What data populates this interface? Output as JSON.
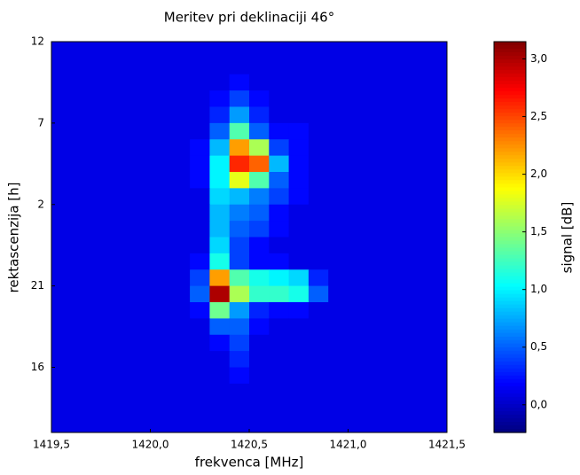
{
  "chart_data": {
    "type": "heatmap",
    "title": "Meritev pri deklinaciji 46°",
    "x_label": "frekvenca [MHz]",
    "y_label": "rektascenzija [h]",
    "colormap": "jet",
    "x": [
      1419.55,
      1419.65,
      1419.75,
      1419.85,
      1419.95,
      1420.05,
      1420.15,
      1420.25,
      1420.35,
      1420.45,
      1420.55,
      1420.65,
      1420.75,
      1420.85,
      1420.95,
      1421.05,
      1421.15,
      1421.25,
      1421.35,
      1421.45
    ],
    "y": [
      11.5,
      10.5,
      9.5,
      8.5,
      7.5,
      6.5,
      5.5,
      4.5,
      3.5,
      2.5,
      1.5,
      0.5,
      -0.5,
      -1.5,
      -2.5,
      -3.5,
      -4.5,
      -5.5,
      -6.5,
      -7.5,
      -8.5,
      -9.5,
      -10.5,
      -11.5
    ],
    "z": [
      [
        0.1,
        0.1,
        0.1,
        0.1,
        0.1,
        0.1,
        0.1,
        0.1,
        0.1,
        0.1,
        0.1,
        0.1,
        0.1,
        0.1,
        0.1,
        0.1,
        0.1,
        0.1,
        0.1,
        0.1
      ],
      [
        0.1,
        0.1,
        0.1,
        0.1,
        0.1,
        0.1,
        0.1,
        0.1,
        0.1,
        0.1,
        0.1,
        0.1,
        0.1,
        0.1,
        0.1,
        0.1,
        0.1,
        0.1,
        0.1,
        0.1
      ],
      [
        0.1,
        0.1,
        0.1,
        0.1,
        0.1,
        0.1,
        0.1,
        0.1,
        0.1,
        0.2,
        0.1,
        0.1,
        0.1,
        0.1,
        0.1,
        0.1,
        0.1,
        0.1,
        0.1,
        0.1
      ],
      [
        0.1,
        0.1,
        0.1,
        0.1,
        0.1,
        0.1,
        0.1,
        0.1,
        0.2,
        0.4,
        0.2,
        0.1,
        0.1,
        0.1,
        0.1,
        0.1,
        0.1,
        0.1,
        0.1,
        0.1
      ],
      [
        0.1,
        0.1,
        0.1,
        0.1,
        0.1,
        0.1,
        0.1,
        0.1,
        0.3,
        0.7,
        0.3,
        0.1,
        0.1,
        0.1,
        0.1,
        0.1,
        0.1,
        0.1,
        0.1,
        0.1
      ],
      [
        0.1,
        0.1,
        0.1,
        0.1,
        0.1,
        0.1,
        0.1,
        0.1,
        0.5,
        1.3,
        0.5,
        0.2,
        0.2,
        0.1,
        0.1,
        0.1,
        0.1,
        0.1,
        0.1,
        0.1
      ],
      [
        0.1,
        0.1,
        0.1,
        0.1,
        0.1,
        0.1,
        0.1,
        0.2,
        0.8,
        2.2,
        1.6,
        0.4,
        0.2,
        0.1,
        0.1,
        0.1,
        0.1,
        0.1,
        0.1,
        0.1
      ],
      [
        0.1,
        0.1,
        0.1,
        0.1,
        0.1,
        0.1,
        0.1,
        0.2,
        1.0,
        2.6,
        2.4,
        0.8,
        0.2,
        0.1,
        0.1,
        0.1,
        0.1,
        0.1,
        0.1,
        0.1
      ],
      [
        0.1,
        0.1,
        0.1,
        0.1,
        0.1,
        0.1,
        0.1,
        0.2,
        1.0,
        1.8,
        1.3,
        0.5,
        0.2,
        0.1,
        0.1,
        0.1,
        0.1,
        0.1,
        0.1,
        0.1
      ],
      [
        0.1,
        0.1,
        0.1,
        0.1,
        0.1,
        0.1,
        0.1,
        0.1,
        0.9,
        0.8,
        0.6,
        0.4,
        0.2,
        0.1,
        0.1,
        0.1,
        0.1,
        0.1,
        0.1,
        0.1
      ],
      [
        0.1,
        0.1,
        0.1,
        0.1,
        0.1,
        0.1,
        0.1,
        0.1,
        0.8,
        0.6,
        0.5,
        0.2,
        0.1,
        0.1,
        0.1,
        0.1,
        0.1,
        0.1,
        0.1,
        0.1
      ],
      [
        0.1,
        0.1,
        0.1,
        0.1,
        0.1,
        0.1,
        0.1,
        0.1,
        0.8,
        0.5,
        0.4,
        0.2,
        0.1,
        0.1,
        0.1,
        0.1,
        0.1,
        0.1,
        0.1,
        0.1
      ],
      [
        0.1,
        0.1,
        0.1,
        0.1,
        0.1,
        0.1,
        0.1,
        0.1,
        0.9,
        0.4,
        0.2,
        0.1,
        0.1,
        0.1,
        0.1,
        0.1,
        0.1,
        0.1,
        0.1,
        0.1
      ],
      [
        0.1,
        0.1,
        0.1,
        0.1,
        0.1,
        0.1,
        0.1,
        0.2,
        1.1,
        0.4,
        0.2,
        0.2,
        0.1,
        0.1,
        0.1,
        0.1,
        0.1,
        0.1,
        0.1,
        0.1
      ],
      [
        0.1,
        0.1,
        0.1,
        0.1,
        0.1,
        0.1,
        0.1,
        0.4,
        2.2,
        1.3,
        1.1,
        1.0,
        0.9,
        0.3,
        0.1,
        0.1,
        0.1,
        0.1,
        0.1,
        0.1
      ],
      [
        0.1,
        0.1,
        0.1,
        0.1,
        0.1,
        0.1,
        0.1,
        0.5,
        3.0,
        1.6,
        1.2,
        1.2,
        1.1,
        0.5,
        0.1,
        0.1,
        0.1,
        0.1,
        0.1,
        0.1
      ],
      [
        0.1,
        0.1,
        0.1,
        0.1,
        0.1,
        0.1,
        0.1,
        0.2,
        1.4,
        0.7,
        0.3,
        0.2,
        0.2,
        0.1,
        0.1,
        0.1,
        0.1,
        0.1,
        0.1,
        0.1
      ],
      [
        0.1,
        0.1,
        0.1,
        0.1,
        0.1,
        0.1,
        0.1,
        0.1,
        0.5,
        0.5,
        0.2,
        0.1,
        0.1,
        0.1,
        0.1,
        0.1,
        0.1,
        0.1,
        0.1,
        0.1
      ],
      [
        0.1,
        0.1,
        0.1,
        0.1,
        0.1,
        0.1,
        0.1,
        0.1,
        0.2,
        0.4,
        0.1,
        0.1,
        0.1,
        0.1,
        0.1,
        0.1,
        0.1,
        0.1,
        0.1,
        0.1
      ],
      [
        0.1,
        0.1,
        0.1,
        0.1,
        0.1,
        0.1,
        0.1,
        0.1,
        0.1,
        0.3,
        0.1,
        0.1,
        0.1,
        0.1,
        0.1,
        0.1,
        0.1,
        0.1,
        0.1,
        0.1
      ],
      [
        0.1,
        0.1,
        0.1,
        0.1,
        0.1,
        0.1,
        0.1,
        0.1,
        0.1,
        0.2,
        0.1,
        0.1,
        0.1,
        0.1,
        0.1,
        0.1,
        0.1,
        0.1,
        0.1,
        0.1
      ],
      [
        0.1,
        0.1,
        0.1,
        0.1,
        0.1,
        0.1,
        0.1,
        0.1,
        0.1,
        0.1,
        0.1,
        0.1,
        0.1,
        0.1,
        0.1,
        0.1,
        0.1,
        0.1,
        0.1,
        0.1
      ],
      [
        0.1,
        0.1,
        0.1,
        0.1,
        0.1,
        0.1,
        0.1,
        0.1,
        0.1,
        0.1,
        0.1,
        0.1,
        0.1,
        0.1,
        0.1,
        0.1,
        0.1,
        0.1,
        0.1,
        0.1
      ],
      [
        0.1,
        0.1,
        0.1,
        0.1,
        0.1,
        0.1,
        0.1,
        0.1,
        0.1,
        0.1,
        0.1,
        0.1,
        0.1,
        0.1,
        0.1,
        0.1,
        0.1,
        0.1,
        0.1,
        0.1
      ]
    ],
    "xlim": [
      1419.5,
      1421.5
    ],
    "xticks": [
      {
        "value": 1419.5,
        "label": "1419,5"
      },
      {
        "value": 1420.0,
        "label": "1420,0"
      },
      {
        "value": 1420.5,
        "label": "1420,5"
      },
      {
        "value": 1421.0,
        "label": "1421,0"
      },
      {
        "value": 1421.5,
        "label": "1421,5"
      }
    ],
    "ylim": [
      -12,
      12
    ],
    "yticks": [
      12,
      7,
      2,
      {
        "value": -3,
        "label": "21"
      },
      {
        "value": -8,
        "label": "16"
      }
    ],
    "colorbar": {
      "label": "signal [dB]",
      "ylim": [
        -0.24,
        3.15
      ],
      "yticks": [
        {
          "value": 0,
          "label": "0,0"
        },
        {
          "value": 0.5,
          "label": "0,5"
        },
        {
          "value": 1,
          "label": "1,0"
        },
        {
          "value": 1.5,
          "label": "1,5"
        },
        {
          "value": 2,
          "label": "2,0"
        },
        {
          "value": 2.5,
          "label": "2,5"
        },
        {
          "value": 3,
          "label": "3,0"
        }
      ]
    }
  }
}
